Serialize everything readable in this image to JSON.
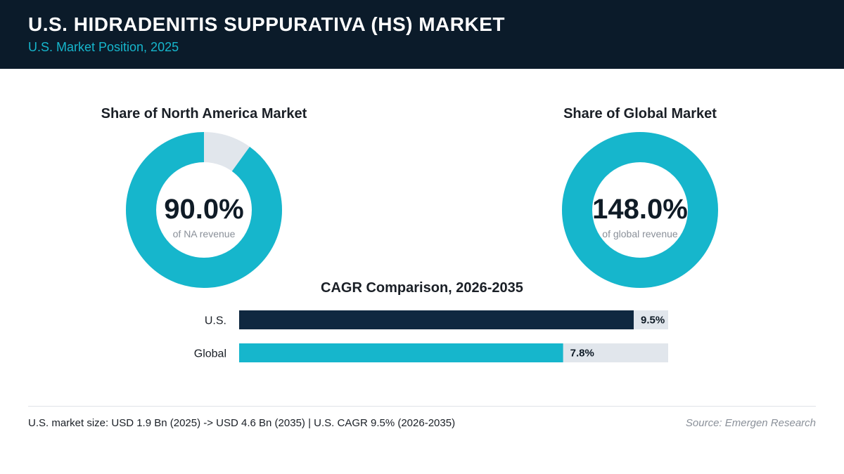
{
  "header": {
    "title": "U.S. HIDRADENITIS SUPPURATIVA (HS) MARKET",
    "subtitle": "U.S. Market Position, 2025"
  },
  "colors": {
    "header_bg": "#0b1b2a",
    "accent": "#16b6cc",
    "track": "#e1e6ec",
    "us_bar": "#0f2840"
  },
  "chart_data": [
    {
      "type": "pie",
      "title": "Share of North America Market",
      "center_value": "90.0%",
      "center_caption": "of NA revenue",
      "share_percent": 90.0
    },
    {
      "type": "pie",
      "title": "Share of Global Market",
      "center_value": "148.0%",
      "center_caption": "of global revenue",
      "share_percent": 148.0
    },
    {
      "type": "bar",
      "title": "CAGR Comparison, 2026-2035",
      "categories": [
        "U.S.",
        "Global"
      ],
      "values": [
        9.5,
        7.8
      ],
      "value_labels": [
        "9.5%",
        "7.8%"
      ],
      "xlim": [
        0,
        9.5
      ]
    }
  ],
  "footer": {
    "note": "U.S. market size: USD 1.9 Bn (2025) -> USD 4.6 Bn (2035)  |  U.S. CAGR 9.5% (2026-2035)",
    "source": "Source: Emergen Research"
  }
}
